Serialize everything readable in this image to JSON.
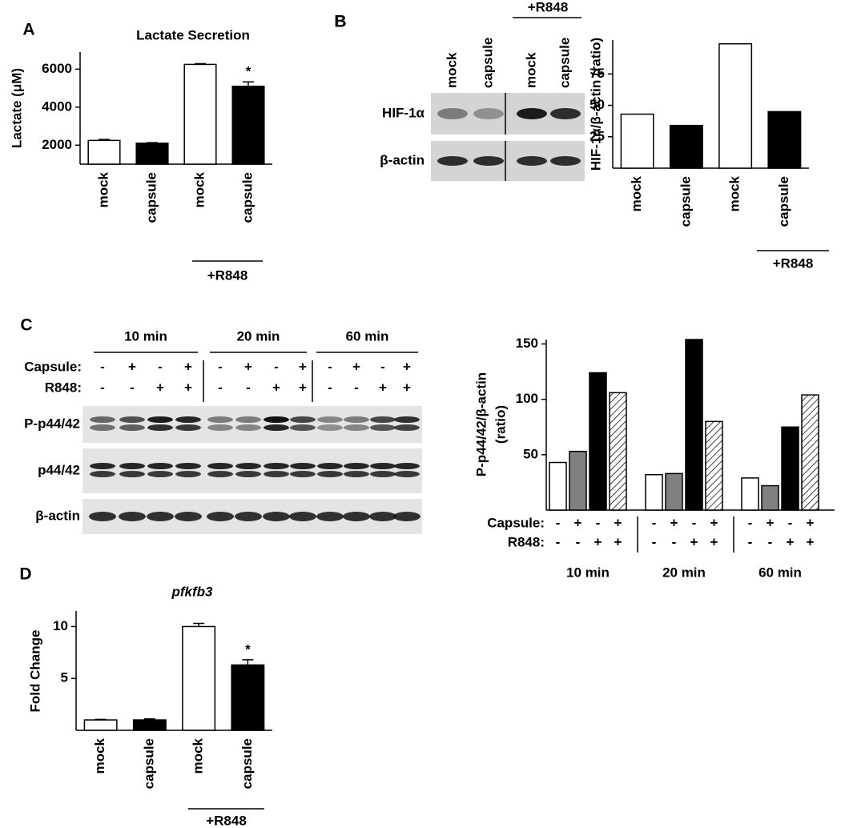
{
  "chart_data": [
    {
      "type": "bar",
      "panel": "A",
      "title": "Lactate Secretion",
      "y_label": "Lactate (μM)",
      "categories": [
        "mock",
        "capsule",
        "mock",
        "capsule"
      ],
      "values": [
        2250,
        2100,
        6250,
        5100
      ],
      "errors": [
        50,
        30,
        40,
        230
      ],
      "colors": [
        "#ffffff",
        "#000000",
        "#ffffff",
        "#000000"
      ],
      "value_annotations": [
        null,
        null,
        null,
        "*"
      ],
      "group_label": "+R848",
      "ylim": [
        1000,
        6900
      ],
      "yticks": [
        2000,
        4000,
        6000
      ]
    },
    {
      "type": "bar",
      "panel": "B",
      "y_label": "HIF-1α/β-actin (ratio)",
      "categories": [
        "mock",
        "capsule",
        "mock",
        "capsule"
      ],
      "values": [
        43,
        34,
        99,
        45
      ],
      "colors": [
        "#ffffff",
        "#000000",
        "#ffffff",
        "#000000"
      ],
      "group_label": "+R848",
      "ylim": [
        0,
        102
      ],
      "yticks": [
        25,
        50,
        75
      ]
    },
    {
      "type": "grouped_bar",
      "y_label": [
        "P-p44/42/β-actin",
        "(ratio)"
      ],
      "categories": [
        "10 min",
        "20 min",
        "60 min"
      ],
      "series": [
        {
          "color": "#ffffff",
          "values": [
            43,
            32,
            29
          ]
        },
        {
          "color": "#808080",
          "values": [
            53,
            33,
            22
          ]
        },
        {
          "color": "#000000",
          "values": [
            124,
            154,
            75
          ]
        },
        {
          "color": "#ffffff",
          "hatch": true,
          "values": [
            106,
            80,
            104
          ]
        }
      ],
      "conditions": [
        {
          "label": "Capsule:",
          "signs": [
            "-",
            "+",
            "-",
            "+",
            "-",
            "+",
            "-",
            "+",
            "-",
            "+",
            "-",
            "+"
          ]
        },
        {
          "label": "R848:",
          "signs": [
            "-",
            "-",
            "+",
            "+",
            "-",
            "-",
            "+",
            "+",
            "-",
            "-",
            "+",
            "+"
          ]
        }
      ],
      "ylim": [
        0,
        154
      ],
      "yticks": [
        50,
        100,
        150
      ]
    },
    {
      "type": "bar",
      "panel": "D",
      "title": "pfkfb3",
      "y_label": "Fold Change",
      "categories": [
        "mock",
        "capsule",
        "mock",
        "capsule"
      ],
      "values": [
        1.0,
        1.0,
        10.0,
        6.3
      ],
      "errors": [
        0.05,
        0.1,
        0.3,
        0.5
      ],
      "colors": [
        "#ffffff",
        "#000000",
        "#ffffff",
        "#000000"
      ],
      "value_annotations": [
        null,
        null,
        null,
        "*"
      ],
      "group_label": "+R848",
      "ylim": [
        0,
        11.5
      ],
      "yticks": [
        5,
        10
      ]
    }
  ],
  "blots": [
    {
      "panel": "B",
      "lanes": [
        "mock",
        "capsule",
        "mock",
        "capsule"
      ],
      "group_label": "+R848",
      "rows": [
        "HIF-1α",
        "β-actin"
      ]
    },
    {
      "panel": "C",
      "time_labels": [
        "10 min",
        "20 min",
        "60 min"
      ],
      "conditions": [
        {
          "label": "Capsule:",
          "signs": [
            "-",
            "+",
            "-",
            "+",
            "-",
            "+",
            "-",
            "+",
            "-",
            "+",
            "-",
            "+"
          ]
        },
        {
          "label": "R848:",
          "signs": [
            "-",
            "-",
            "+",
            "+",
            "-",
            "-",
            "+",
            "+",
            "-",
            "-",
            "+",
            "+"
          ]
        }
      ],
      "rows": [
        "P-p44/42",
        "p44/42",
        "β-actin"
      ]
    }
  ]
}
